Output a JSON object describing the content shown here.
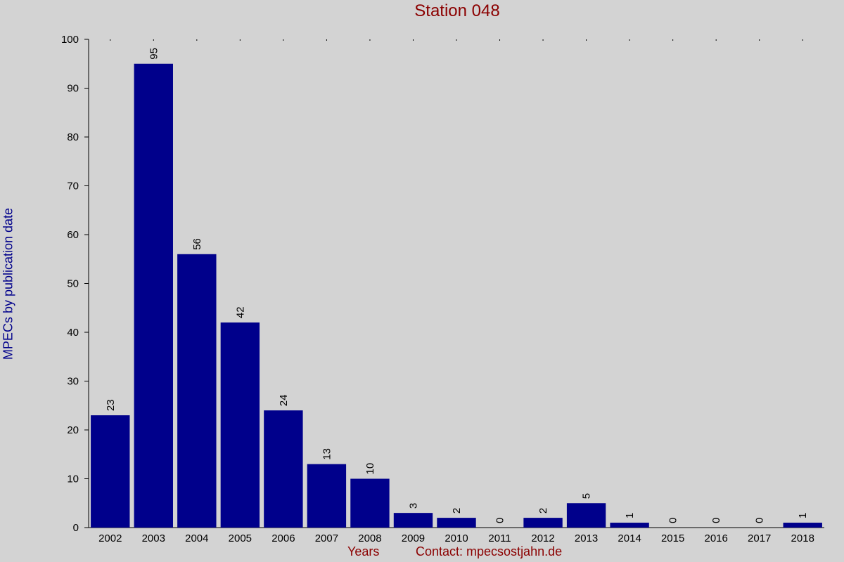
{
  "chart_data": {
    "type": "bar",
    "title": "Station 048",
    "ylabel": "MPECs by publication date",
    "xlabel": "Years",
    "footer": "Contact: mpecsοstjahn.de",
    "categories": [
      "2002",
      "2003",
      "2004",
      "2005",
      "2006",
      "2007",
      "2008",
      "2009",
      "2010",
      "2011",
      "2012",
      "2013",
      "2014",
      "2015",
      "2016",
      "2017",
      "2018"
    ],
    "values": [
      23,
      95,
      56,
      42,
      24,
      13,
      10,
      3,
      2,
      0,
      2,
      5,
      1,
      0,
      0,
      0,
      1
    ],
    "ylim": [
      0,
      100
    ],
    "yticks": [
      0,
      10,
      20,
      30,
      40,
      50,
      60,
      70,
      80,
      90,
      100
    ],
    "grid": false,
    "colors": {
      "bar": "#00008b",
      "title": "#8b0000",
      "ylabel": "#00008b",
      "axis": "#000000"
    }
  }
}
